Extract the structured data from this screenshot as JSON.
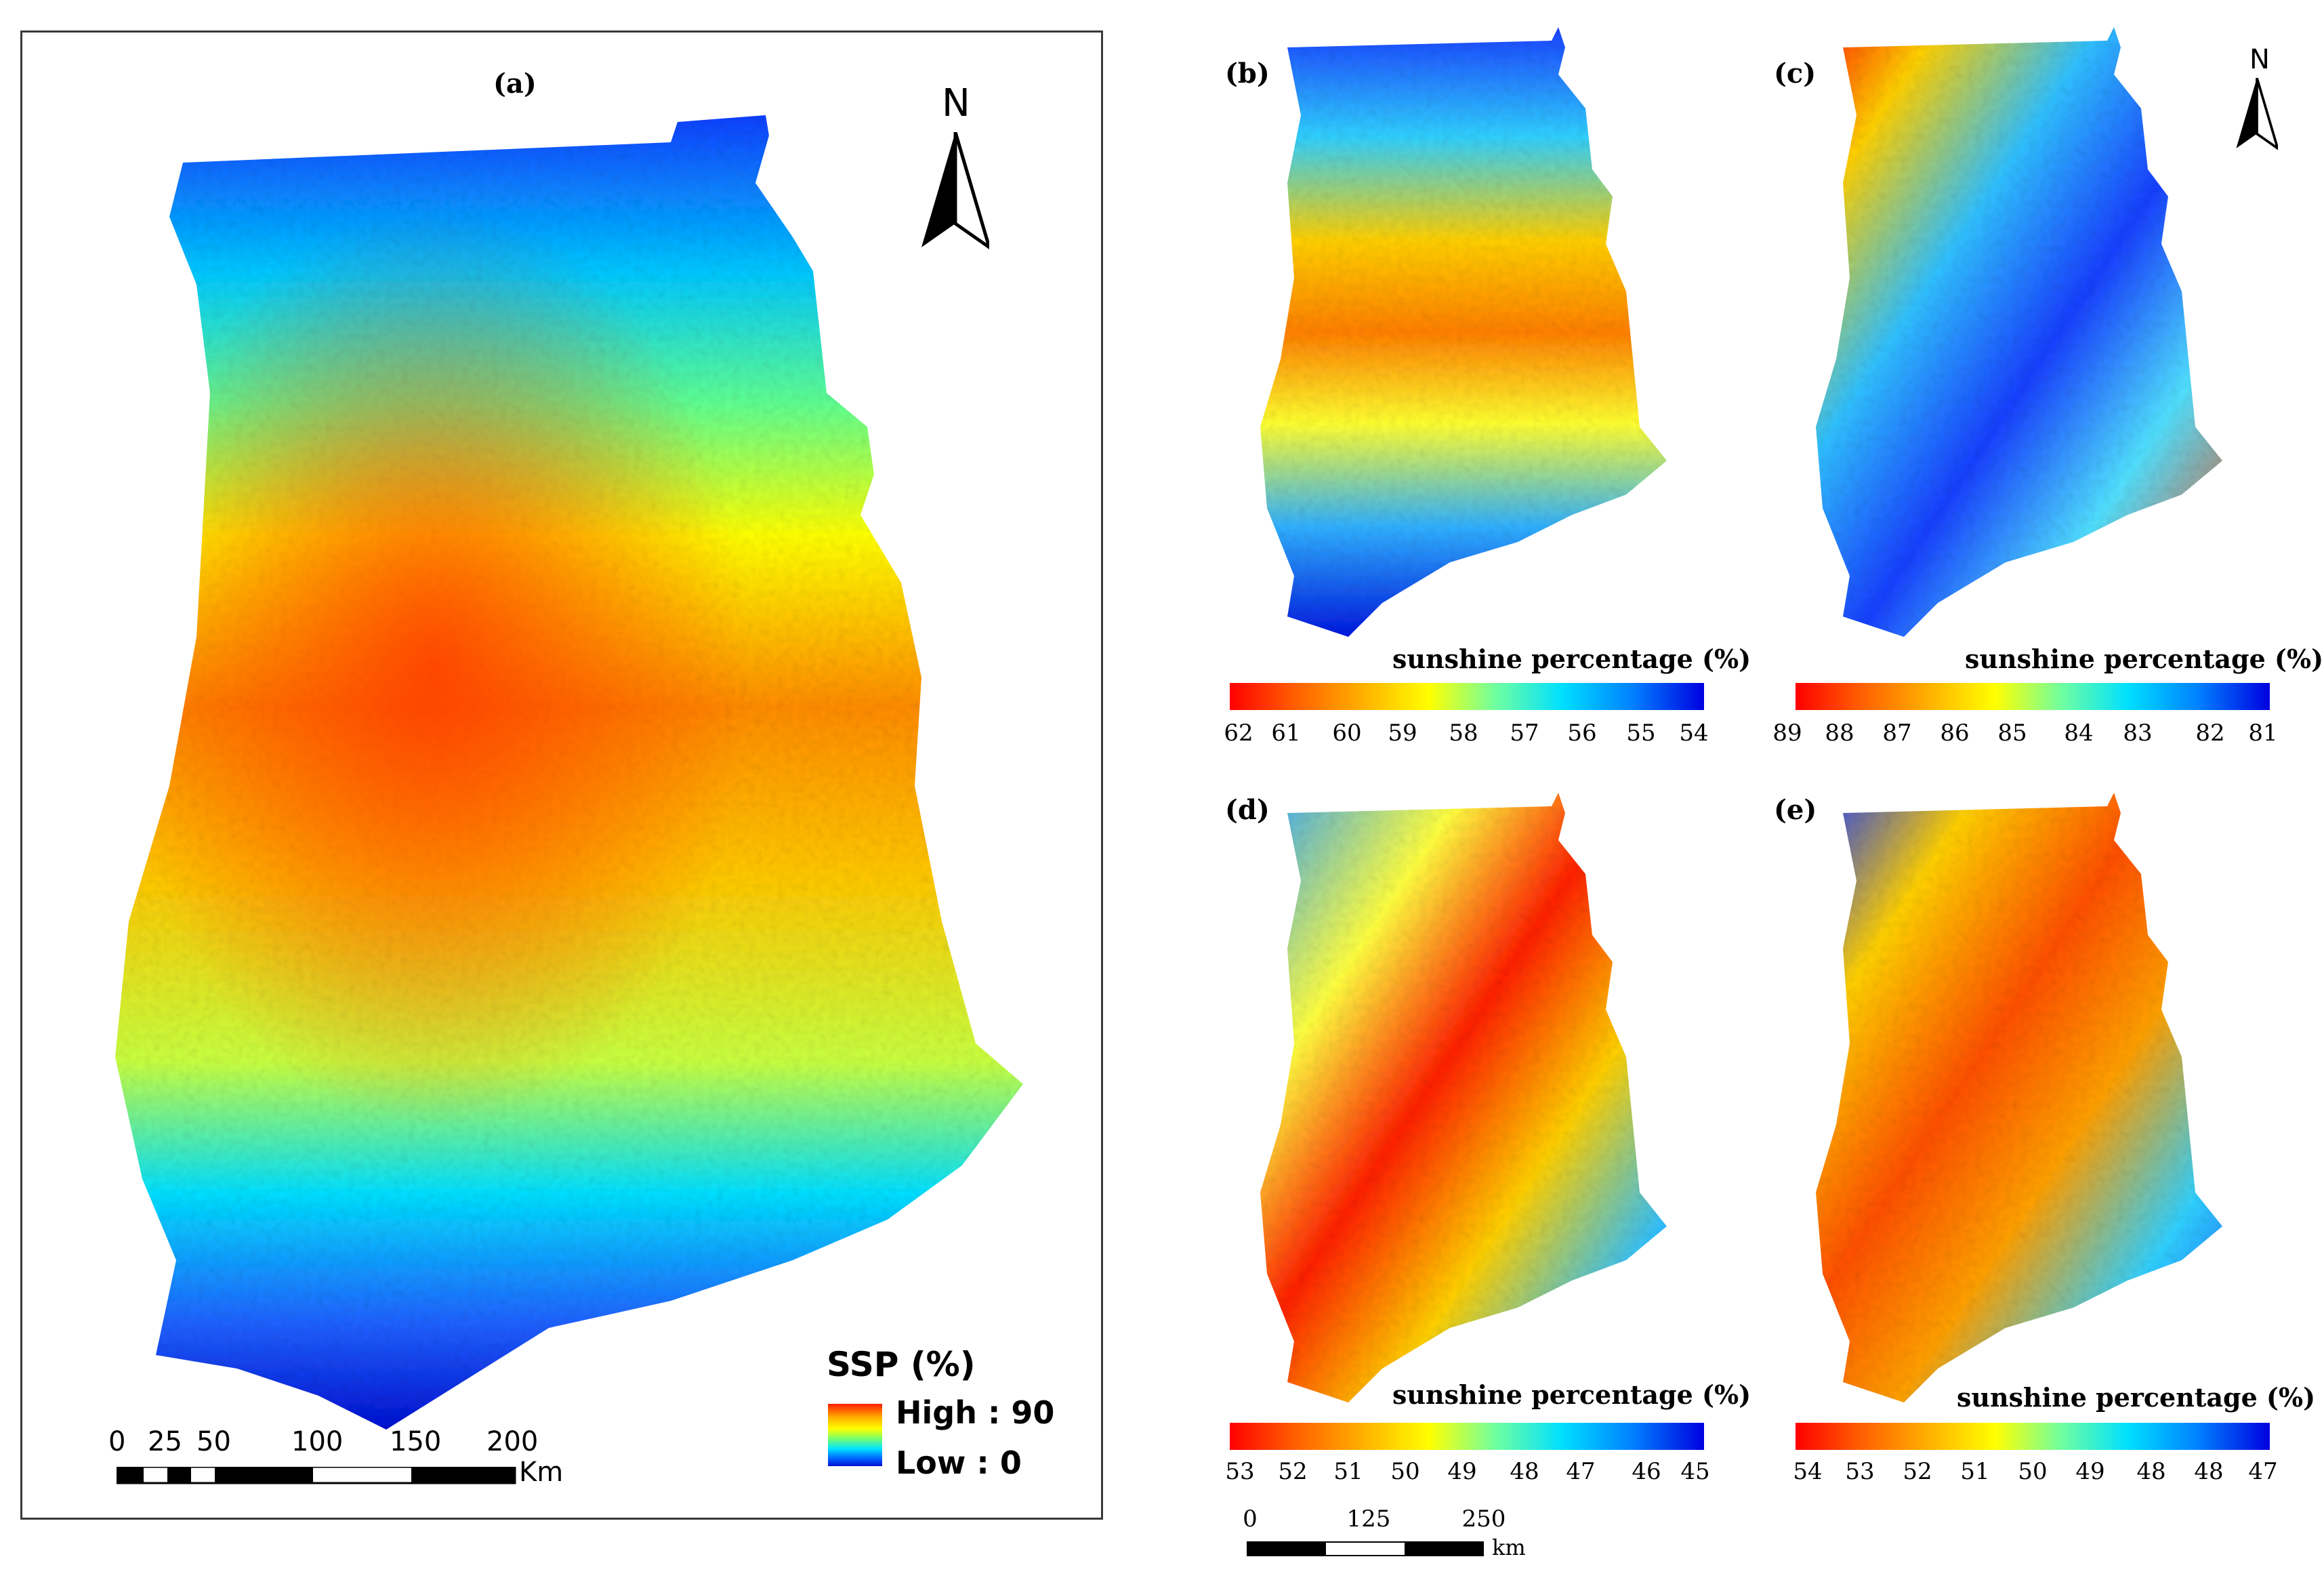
{
  "panel_a": {
    "label": "(a)",
    "north_letter": "N",
    "legend": {
      "title": "SSP (%)",
      "high": "High : 90",
      "low": "Low : 0",
      "high_value": 90,
      "low_value": 0
    },
    "scale": {
      "ticks": [
        "0",
        "25",
        "50",
        "100",
        "150",
        "200"
      ],
      "unit": "Km"
    }
  },
  "panel_b": {
    "label": "(b)",
    "colorbar": {
      "title": "sunshine percentage (%)",
      "ticks": [
        "62",
        "61",
        "60",
        "59",
        "58",
        "57",
        "56",
        "55",
        "54"
      ]
    }
  },
  "panel_c": {
    "label": "(c)",
    "north_letter": "N",
    "colorbar": {
      "title": "sunshine percentage (%)",
      "ticks": [
        "89",
        "88",
        "87",
        "86",
        "85",
        "84",
        "83",
        "82",
        "81"
      ]
    }
  },
  "panel_d": {
    "label": "(d)",
    "colorbar": {
      "title": "sunshine percentage (%)",
      "ticks": [
        "53",
        "52",
        "51",
        "50",
        "49",
        "48",
        "47",
        "46",
        "45"
      ]
    }
  },
  "panel_e": {
    "label": "(e)",
    "colorbar": {
      "title": "sunshine percentage (%)",
      "ticks": [
        "54",
        "53",
        "52",
        "51",
        "50",
        "49",
        "48",
        "48",
        "47"
      ]
    }
  },
  "shared_scale": {
    "ticks": [
      "0",
      "125",
      "250"
    ],
    "unit": "km"
  },
  "colors": {
    "high": "#ff1e00",
    "mid": "#ffff00",
    "low": "#0010d0"
  }
}
